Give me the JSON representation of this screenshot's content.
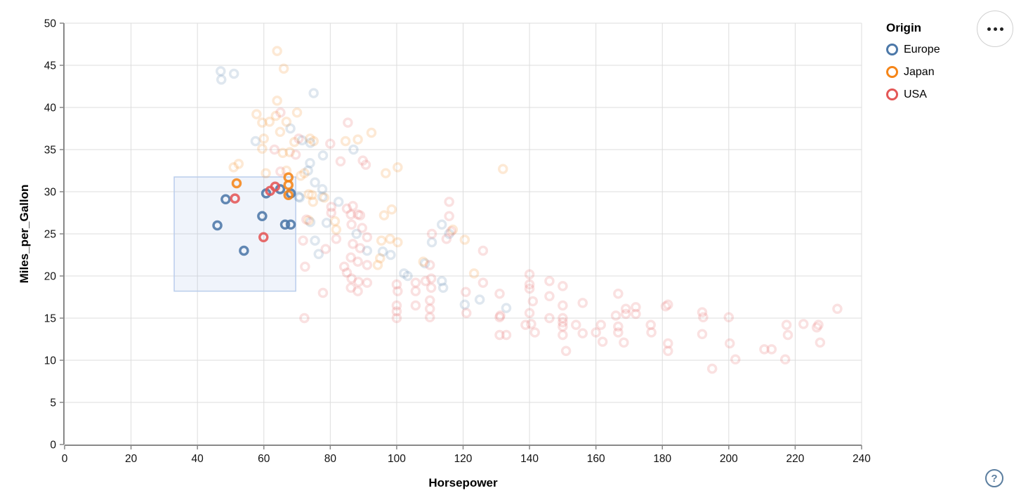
{
  "page": {
    "background": "#ffffff"
  },
  "legend": {
    "title": "Origin",
    "items": [
      {
        "label": "Europe",
        "color": "#4c78a8"
      },
      {
        "label": "Japan",
        "color": "#f58518"
      },
      {
        "label": "USA",
        "color": "#e45756"
      }
    ]
  },
  "menu_button": {
    "icon": "ellipsis"
  },
  "help_button": {
    "label": "?"
  },
  "chart_data": {
    "type": "scatter",
    "title": "",
    "xlabel": "Horsepower",
    "ylabel": "Miles_per_Gallon",
    "xlim": [
      0,
      240
    ],
    "ylim": [
      0,
      50
    ],
    "xticks": [
      0,
      20,
      40,
      60,
      80,
      100,
      120,
      140,
      160,
      180,
      200,
      220,
      240
    ],
    "yticks": [
      0,
      5,
      10,
      15,
      20,
      25,
      30,
      35,
      40,
      45,
      50
    ],
    "grid": true,
    "legend_position": "top-right",
    "grid_color": "#dddddd",
    "axis_color": "#888888",
    "label_color": "#111111",
    "point_style": {
      "shape": "ring",
      "radius": 5.5,
      "stroke_width": 3.5,
      "unselected_opacity": 0.18,
      "selected_opacity": 0.88
    },
    "brush": {
      "x": [
        33,
        69.6
      ],
      "y": [
        18.2,
        31.75
      ],
      "fill": "rgba(130,165,220,0.12)",
      "stroke": "#b9cdec"
    },
    "series": [
      {
        "name": "Europe",
        "color": "#4c78a8",
        "selected": [
          [
            46,
            26
          ],
          [
            48.5,
            29.1
          ],
          [
            54,
            23
          ],
          [
            59.5,
            27.1
          ],
          [
            60.7,
            29.8
          ],
          [
            64.9,
            30.3
          ],
          [
            68.1,
            29.8
          ],
          [
            66.4,
            26.1
          ],
          [
            68.1,
            26.1
          ]
        ],
        "points": [
          [
            47,
            44.3
          ],
          [
            51,
            44
          ],
          [
            47.2,
            43.3
          ],
          [
            75,
            41.7
          ],
          [
            57.5,
            36
          ],
          [
            68,
            37.5
          ],
          [
            71.5,
            36.1
          ],
          [
            74,
            35.8
          ],
          [
            87,
            35
          ],
          [
            77.8,
            34.3
          ],
          [
            73.3,
            32.5
          ],
          [
            73.9,
            33.4
          ],
          [
            75.4,
            31.1
          ],
          [
            77.6,
            30.3
          ],
          [
            70.8,
            29.3
          ],
          [
            70.5,
            29.4
          ],
          [
            77.6,
            29.4
          ],
          [
            82.5,
            28.8
          ],
          [
            74,
            26.4
          ],
          [
            78.9,
            26.3
          ],
          [
            76.5,
            22.6
          ],
          [
            75.4,
            24.2
          ],
          [
            87.9,
            25
          ],
          [
            91.1,
            23
          ],
          [
            95.8,
            22.9
          ],
          [
            98.2,
            22.5
          ],
          [
            102.2,
            20.3
          ],
          [
            103.3,
            20
          ],
          [
            113.6,
            26.1
          ],
          [
            115.8,
            25
          ],
          [
            110.6,
            24
          ],
          [
            108.5,
            21.5
          ],
          [
            113.6,
            19.4
          ],
          [
            114,
            18.6
          ],
          [
            120.5,
            16.6
          ],
          [
            125,
            17.2
          ],
          [
            133,
            16.2
          ]
        ]
      },
      {
        "name": "Japan",
        "color": "#f58518",
        "selected": [
          [
            51.8,
            31
          ],
          [
            67.4,
            31.7
          ],
          [
            67.4,
            30.8
          ],
          [
            67.4,
            29.6
          ]
        ],
        "points": [
          [
            64,
            46.7
          ],
          [
            66,
            44.6
          ],
          [
            64,
            40.8
          ],
          [
            70,
            39.4
          ],
          [
            57.8,
            39.2
          ],
          [
            63.6,
            39
          ],
          [
            59.5,
            38.2
          ],
          [
            61.7,
            38.3
          ],
          [
            66.8,
            38.3
          ],
          [
            64.9,
            37.1
          ],
          [
            60,
            36.3
          ],
          [
            92.4,
            37
          ],
          [
            84.6,
            36
          ],
          [
            88.3,
            36.2
          ],
          [
            75,
            36
          ],
          [
            73.9,
            36.3
          ],
          [
            69.2,
            35.9
          ],
          [
            59.5,
            35.1
          ],
          [
            65.7,
            34.6
          ],
          [
            67.8,
            34.7
          ],
          [
            52.4,
            33.3
          ],
          [
            50.9,
            32.9
          ],
          [
            60.6,
            32.2
          ],
          [
            66.8,
            32.5
          ],
          [
            71.1,
            31.9
          ],
          [
            100.3,
            32.9
          ],
          [
            96.7,
            32.2
          ],
          [
            132,
            32.7
          ],
          [
            72.2,
            32.2
          ],
          [
            74.5,
            29.6
          ],
          [
            73.5,
            29.7
          ],
          [
            74.8,
            28.8
          ],
          [
            78.2,
            29.3
          ],
          [
            81.4,
            26.5
          ],
          [
            81.8,
            25.5
          ],
          [
            96.2,
            27.2
          ],
          [
            95.4,
            24.2
          ],
          [
            98,
            24.4
          ],
          [
            95,
            22.1
          ],
          [
            94.3,
            21.3
          ],
          [
            100.3,
            24
          ],
          [
            116.9,
            25.5
          ],
          [
            120.5,
            24.3
          ],
          [
            123.3,
            20.3
          ],
          [
            108,
            21.7
          ],
          [
            73.5,
            26.6
          ],
          [
            98.5,
            27.9
          ]
        ]
      },
      {
        "name": "USA",
        "color": "#e45756",
        "selected": [
          [
            51.3,
            29.2
          ],
          [
            59.9,
            24.6
          ],
          [
            61.9,
            30.1
          ],
          [
            63.4,
            30.6
          ]
        ],
        "points": [
          [
            65,
            39.4
          ],
          [
            85.3,
            38.2
          ],
          [
            80,
            35.7
          ],
          [
            70.5,
            36.3
          ],
          [
            63.2,
            35
          ],
          [
            69.6,
            34.4
          ],
          [
            83.1,
            33.6
          ],
          [
            89.8,
            33.7
          ],
          [
            90.7,
            33.2
          ],
          [
            65,
            32.4
          ],
          [
            80.3,
            28.2
          ],
          [
            85,
            28
          ],
          [
            86.8,
            28.3
          ],
          [
            88.3,
            27.3
          ],
          [
            86.2,
            27.3
          ],
          [
            89,
            27.2
          ],
          [
            86.4,
            26.1
          ],
          [
            89.6,
            25.7
          ],
          [
            91.1,
            24.6
          ],
          [
            86.8,
            23.8
          ],
          [
            89,
            23.3
          ],
          [
            86.2,
            22.2
          ],
          [
            88.3,
            21.7
          ],
          [
            91.1,
            21.3
          ],
          [
            84.2,
            21.1
          ],
          [
            85,
            20.4
          ],
          [
            86.4,
            19.7
          ],
          [
            88.5,
            19.3
          ],
          [
            91.1,
            19.2
          ],
          [
            86.2,
            18.6
          ],
          [
            88.3,
            18.2
          ],
          [
            72.8,
            26.7
          ],
          [
            72.4,
            21.1
          ],
          [
            71.8,
            24.2
          ],
          [
            78.6,
            23.2
          ],
          [
            80.3,
            27.5
          ],
          [
            81.8,
            24.4
          ],
          [
            77.8,
            18
          ],
          [
            115.8,
            28.8
          ],
          [
            115.8,
            27.1
          ],
          [
            110.6,
            25
          ],
          [
            115,
            24.4
          ],
          [
            116.4,
            25.3
          ],
          [
            100,
            19
          ],
          [
            100.3,
            18.2
          ],
          [
            100,
            16.5
          ],
          [
            100,
            15.8
          ],
          [
            100,
            15
          ],
          [
            105.7,
            19.2
          ],
          [
            105.7,
            18.2
          ],
          [
            105.7,
            16.5
          ],
          [
            110,
            21.3
          ],
          [
            110.4,
            19.7
          ],
          [
            110.4,
            18.6
          ],
          [
            110,
            17.1
          ],
          [
            110,
            16.1
          ],
          [
            110,
            15.1
          ],
          [
            108.7,
            19.4
          ],
          [
            126,
            23
          ],
          [
            126,
            19.2
          ],
          [
            120.8,
            18.1
          ],
          [
            121,
            15.6
          ],
          [
            131,
            17.9
          ],
          [
            131.2,
            15.3
          ],
          [
            131,
            15.1
          ],
          [
            131,
            13
          ],
          [
            133,
            13
          ],
          [
            138.8,
            14.2
          ],
          [
            140.5,
            14.3
          ],
          [
            141.6,
            13.3
          ],
          [
            140,
            20.2
          ],
          [
            140,
            19
          ],
          [
            140,
            18.5
          ],
          [
            141,
            17
          ],
          [
            140,
            15.6
          ],
          [
            146,
            19.4
          ],
          [
            146,
            17.6
          ],
          [
            146,
            15
          ],
          [
            150,
            18.8
          ],
          [
            150,
            16.5
          ],
          [
            150,
            15
          ],
          [
            150,
            14.5
          ],
          [
            150,
            14
          ],
          [
            150,
            13
          ],
          [
            151,
            11.1
          ],
          [
            154,
            14.2
          ],
          [
            156,
            16.8
          ],
          [
            156,
            13.2
          ],
          [
            160,
            13.3
          ],
          [
            161.5,
            14.2
          ],
          [
            162,
            12.2
          ],
          [
            166,
            15.3
          ],
          [
            166.7,
            14
          ],
          [
            166.7,
            13.3
          ],
          [
            166.7,
            17.9
          ],
          [
            168.4,
            12.1
          ],
          [
            169,
            16.1
          ],
          [
            169,
            15.5
          ],
          [
            172,
            16.3
          ],
          [
            172,
            15.5
          ],
          [
            176.5,
            14.2
          ],
          [
            176.7,
            13.3
          ],
          [
            181.7,
            16.6
          ],
          [
            181,
            16.4
          ],
          [
            181.7,
            12
          ],
          [
            181.7,
            11.1
          ],
          [
            192,
            15.7
          ],
          [
            192.3,
            15.1
          ],
          [
            192,
            13.1
          ],
          [
            195,
            9
          ],
          [
            200,
            15.1
          ],
          [
            200.3,
            12
          ],
          [
            202,
            10.1
          ],
          [
            210.7,
            11.3
          ],
          [
            212.9,
            11.3
          ],
          [
            217.4,
            14.2
          ],
          [
            217.8,
            13
          ],
          [
            217,
            10.1
          ],
          [
            222.5,
            14.3
          ],
          [
            227,
            14.2
          ],
          [
            226.5,
            13.9
          ],
          [
            227.5,
            12.1
          ],
          [
            232.7,
            16.1
          ],
          [
            72.2,
            15
          ]
        ]
      }
    ]
  }
}
